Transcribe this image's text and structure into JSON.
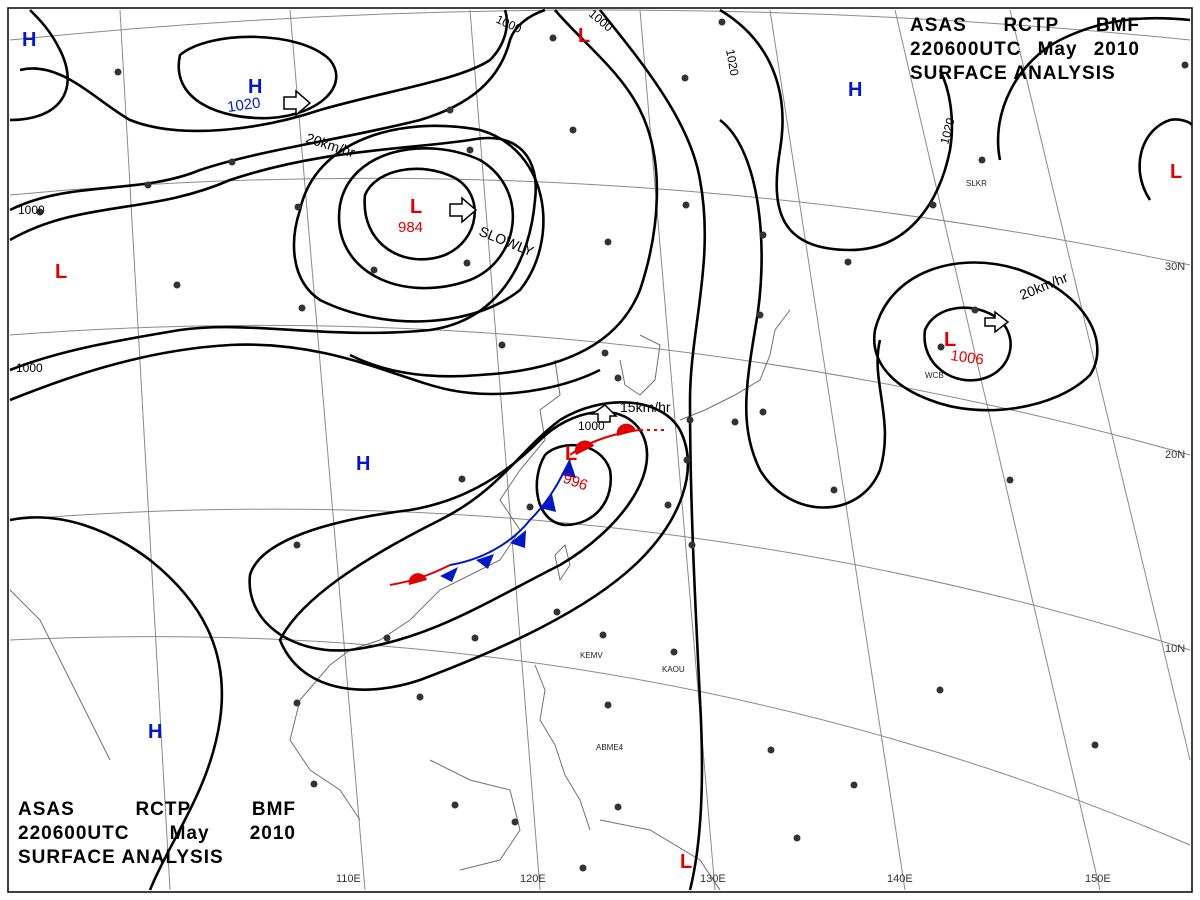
{
  "title": {
    "line1": [
      "ASAS",
      "RCTP",
      "BMF"
    ],
    "line2": [
      "220600UTC",
      "May",
      "2010"
    ],
    "line3": "SURFACE ANALYSIS"
  },
  "centers": {
    "highs": [
      {
        "label": "H",
        "pressure": "1020"
      },
      {
        "label": "H",
        "pressure": ""
      },
      {
        "label": "H",
        "pressure": ""
      },
      {
        "label": "H",
        "pressure": ""
      },
      {
        "label": "H",
        "pressure": ""
      }
    ],
    "lows": [
      {
        "label": "L",
        "pressure": "984"
      },
      {
        "label": "L",
        "pressure": "996"
      },
      {
        "label": "L",
        "pressure": "1006"
      },
      {
        "label": "L",
        "pressure": ""
      },
      {
        "label": "L",
        "pressure": ""
      },
      {
        "label": "L",
        "pressure": ""
      }
    ]
  },
  "motions": [
    "20km/hr",
    "SLOWLY",
    "15km/hr",
    "20km/hr"
  ],
  "isobar_labels": [
    "1000",
    "1000",
    "1000",
    "1000",
    "1000",
    "1020",
    "1020"
  ],
  "longitudes": [
    "110E",
    "120E",
    "130E",
    "140E",
    "150E"
  ],
  "latitudes": [
    "30N",
    "20N",
    "10N"
  ],
  "station_labels": [
    "SLKR",
    "KEMV",
    "KAOU",
    "ABME4",
    "WCB"
  ],
  "colors": {
    "high": "#0018c8",
    "low": "#e00000",
    "front_warm": "#e00000",
    "front_cold": "#0018c8",
    "grid": "#808080",
    "coast": "#666666"
  }
}
